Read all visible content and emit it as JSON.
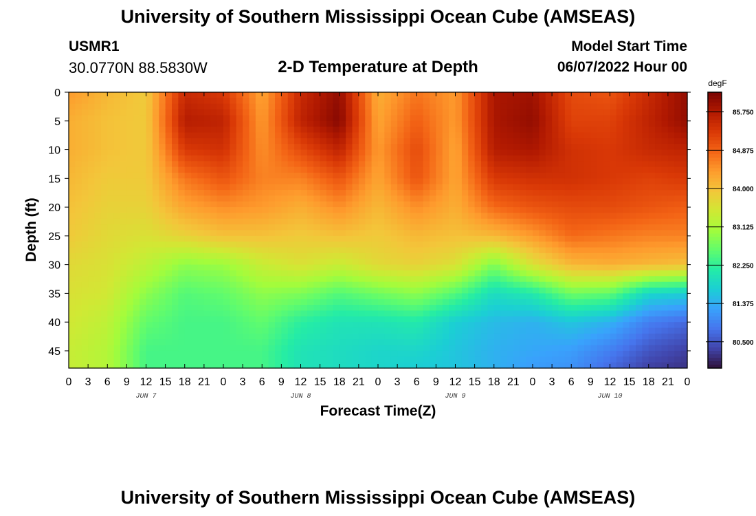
{
  "header": {
    "title": "University of Southern Mississippi Ocean Cube (AMSEAS)",
    "station": "USMR1",
    "coords": "30.0770N  88.5830W",
    "plot_title": "2-D Temperature at Depth",
    "model_start_label": "Model Start Time",
    "model_start_date": "06/07/2022 Hour 00"
  },
  "footer": {
    "title": "University of Southern Mississippi Ocean Cube (AMSEAS)"
  },
  "colors": {
    "colormap": [
      "#30123b",
      "#4145ab",
      "#4675ed",
      "#39a2fc",
      "#1bcfd4",
      "#24eca6",
      "#61fc6c",
      "#a4fc3b",
      "#d1e834",
      "#f3c63a",
      "#fe9b2d",
      "#f36315",
      "#d93806",
      "#b11901",
      "#7a0402"
    ]
  },
  "chart_data": {
    "type": "heatmap",
    "title": "2-D Temperature at Depth",
    "xlabel": "Forecast Time(Z)",
    "ylabel": "Depth (ft)",
    "x_ticks": [
      "0",
      "3",
      "6",
      "9",
      "12",
      "15",
      "18",
      "21",
      "0",
      "3",
      "6",
      "9",
      "12",
      "15",
      "18",
      "21",
      "0",
      "3",
      "6",
      "9",
      "12",
      "15",
      "18",
      "21",
      "0",
      "3",
      "6",
      "9",
      "12",
      "15",
      "18",
      "21",
      "0"
    ],
    "x_hours": [
      0,
      3,
      6,
      9,
      12,
      15,
      18,
      21,
      24,
      27,
      30,
      33,
      36,
      39,
      42,
      45,
      48,
      51,
      54,
      57,
      60,
      63,
      66,
      69,
      72,
      75,
      78,
      81,
      84,
      87,
      90,
      93,
      96
    ],
    "day_labels": [
      {
        "label": "JUN 7",
        "hour": 12
      },
      {
        "label": "JUN 8",
        "hour": 36
      },
      {
        "label": "JUN 9",
        "hour": 60
      },
      {
        "label": "JUN 10",
        "hour": 84
      }
    ],
    "y_ticks": [
      "0",
      "5",
      "10",
      "15",
      "20",
      "25",
      "30",
      "35",
      "40",
      "45"
    ],
    "y_values": [
      0,
      5,
      10,
      15,
      20,
      25,
      30,
      35,
      40,
      45
    ],
    "xlim": [
      0,
      96
    ],
    "ylim": [
      0,
      48
    ],
    "colorbar": {
      "units": "degF",
      "min": 79.9,
      "max": 86.2,
      "ticks": [
        "85.750",
        "84.875",
        "84.000",
        "83.125",
        "82.250",
        "81.375",
        "80.500"
      ],
      "tick_values": [
        85.75,
        84.875,
        84.0,
        83.125,
        82.25,
        81.375,
        80.5
      ]
    },
    "hours": [
      0,
      6,
      12,
      18,
      24,
      30,
      36,
      42,
      48,
      54,
      60,
      66,
      72,
      78,
      84,
      90,
      96
    ],
    "depths": [
      0,
      5,
      10,
      15,
      20,
      25,
      30,
      35,
      40,
      45,
      48
    ],
    "values": [
      [
        84.4,
        84.2,
        84.2,
        84.1,
        84.0,
        83.9,
        83.7,
        83.6,
        83.5,
        83.4,
        83.4
      ],
      [
        84.1,
        84.0,
        84.0,
        83.9,
        83.8,
        83.7,
        83.6,
        83.5,
        83.3,
        83.2,
        83.2
      ],
      [
        83.9,
        83.9,
        83.9,
        83.9,
        83.8,
        83.6,
        83.3,
        82.9,
        82.6,
        82.4,
        82.4
      ],
      [
        85.5,
        85.7,
        85.3,
        84.7,
        84.3,
        83.8,
        82.9,
        82.5,
        82.4,
        82.4,
        82.4
      ],
      [
        85.3,
        85.6,
        85.4,
        85.0,
        84.5,
        84.0,
        83.0,
        82.6,
        82.4,
        82.4,
        82.4
      ],
      [
        84.3,
        84.4,
        84.5,
        84.6,
        84.4,
        84.0,
        83.4,
        82.9,
        82.6,
        82.4,
        82.4
      ],
      [
        85.5,
        85.6,
        85.1,
        84.6,
        84.2,
        83.9,
        83.6,
        82.8,
        82.2,
        82.0,
        82.0
      ],
      [
        86.0,
        86.1,
        85.6,
        85.0,
        84.5,
        84.0,
        83.4,
        82.5,
        82.0,
        81.9,
        81.9
      ],
      [
        84.2,
        84.3,
        84.4,
        84.3,
        84.1,
        83.9,
        83.7,
        82.7,
        82.0,
        81.8,
        81.8
      ],
      [
        84.7,
        84.9,
        85.1,
        85.0,
        84.5,
        84.1,
        83.8,
        82.9,
        82.1,
        81.8,
        81.7
      ],
      [
        84.4,
        84.4,
        84.3,
        84.3,
        84.2,
        84.0,
        83.6,
        82.5,
        81.7,
        81.6,
        81.6
      ],
      [
        85.8,
        85.8,
        85.7,
        85.3,
        84.8,
        84.1,
        82.8,
        81.9,
        81.5,
        81.4,
        81.4
      ],
      [
        85.9,
        86.0,
        85.8,
        85.4,
        85.0,
        84.4,
        83.6,
        82.1,
        81.4,
        81.3,
        81.2
      ],
      [
        85.1,
        85.2,
        85.4,
        85.4,
        85.1,
        84.8,
        84.1,
        82.7,
        81.6,
        81.2,
        81.1
      ],
      [
        85.0,
        85.2,
        85.3,
        85.3,
        85.1,
        84.7,
        84.2,
        82.6,
        81.4,
        80.9,
        80.7
      ],
      [
        85.5,
        85.6,
        85.5,
        85.2,
        85.0,
        84.6,
        84.1,
        81.8,
        80.9,
        80.5,
        80.3
      ],
      [
        86.0,
        86.0,
        85.6,
        85.3,
        84.9,
        84.6,
        84.0,
        81.7,
        80.7,
        80.3,
        80.2
      ]
    ]
  }
}
